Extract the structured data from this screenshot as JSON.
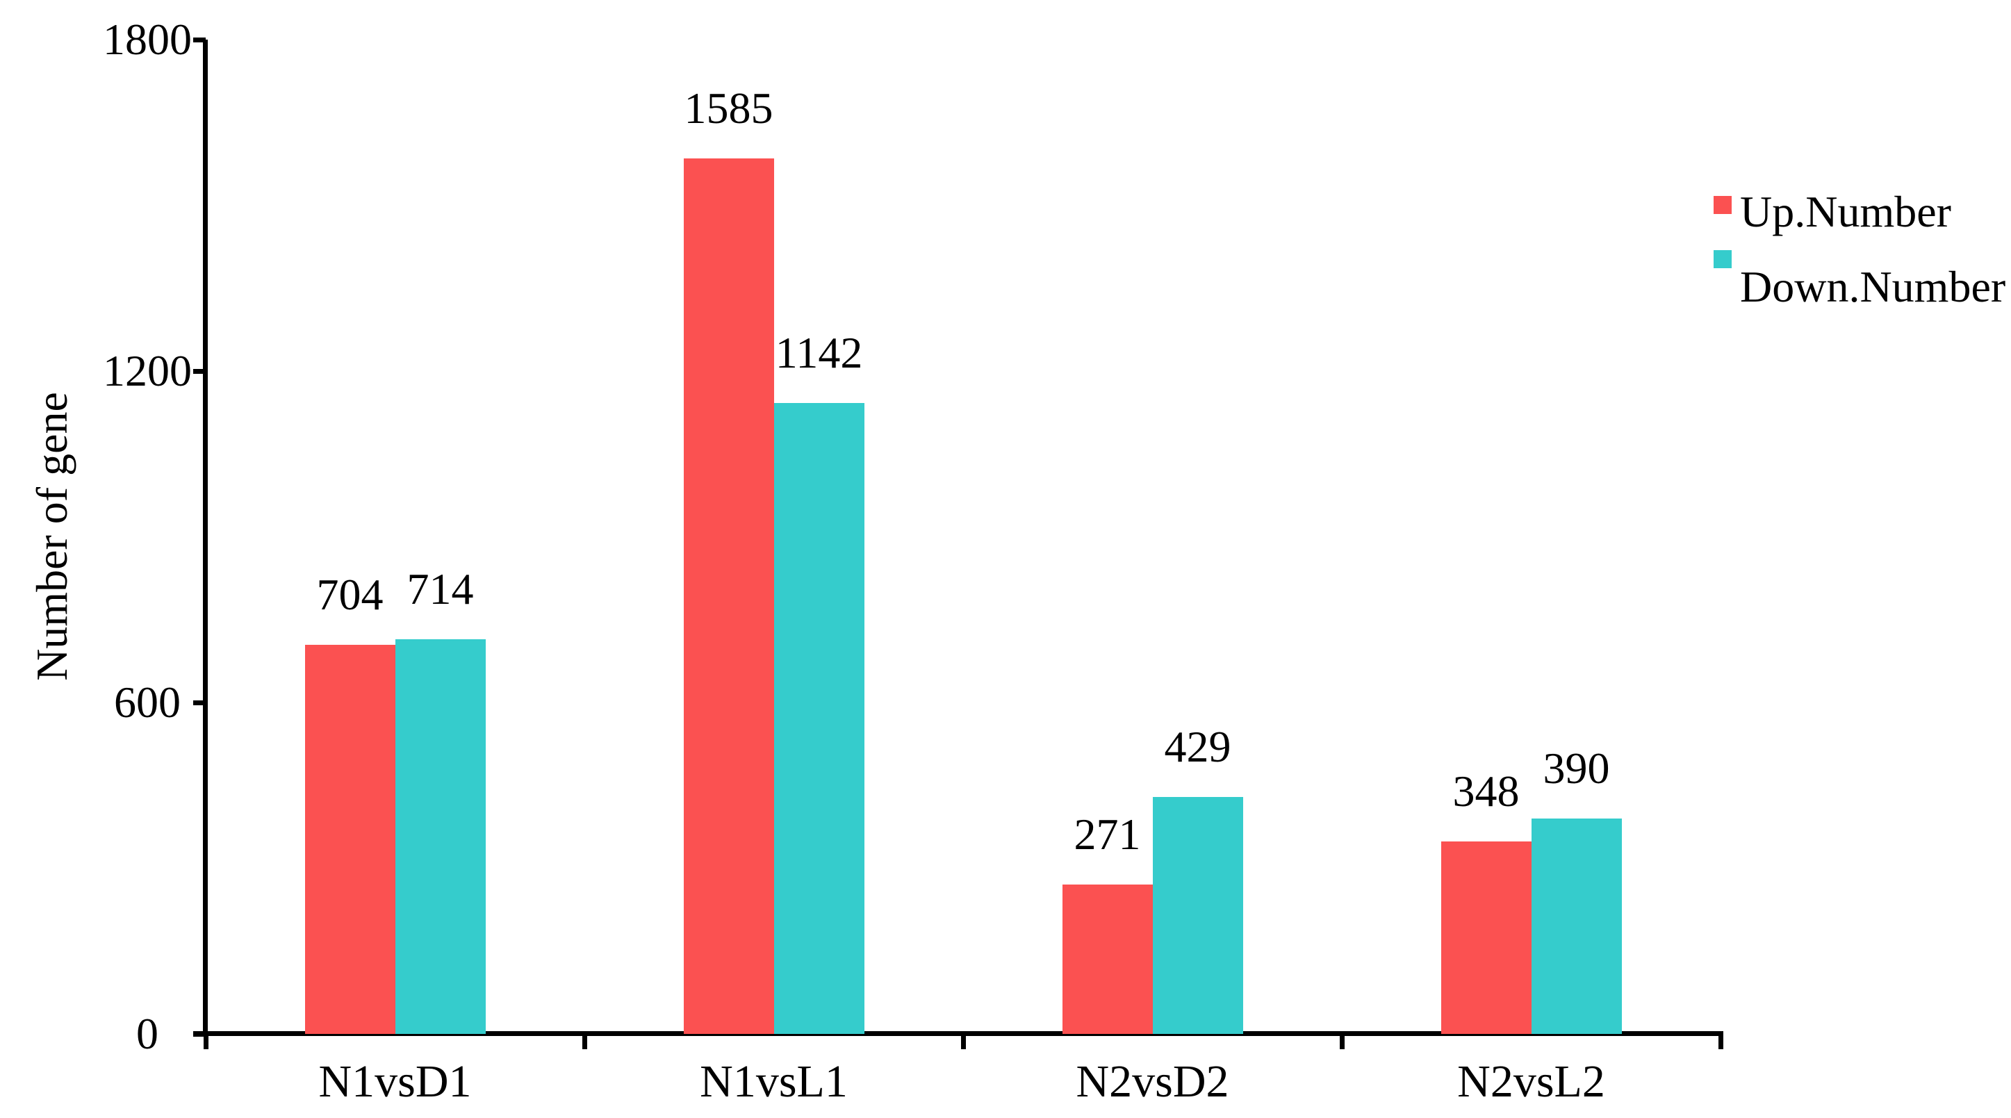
{
  "background": "#ffffff",
  "axis_color": "#000000",
  "chart_data": {
    "type": "bar",
    "title": "",
    "xlabel": "",
    "ylabel": "Number of gene",
    "categories": [
      "N1vsD1",
      "N1vsL1",
      "N2vsD2",
      "N2vsL2"
    ],
    "series": [
      {
        "name": "Up.Number",
        "color": "#FB5151",
        "values": [
          704,
          1585,
          271,
          348
        ]
      },
      {
        "name": "Down.Number",
        "color": "#35CCCC",
        "values": [
          714,
          1142,
          429,
          390
        ]
      }
    ],
    "ylim": [
      0,
      1800
    ],
    "yticks": [
      0,
      600,
      1200,
      1800
    ],
    "grid": false,
    "bar_value_labels": true,
    "legend_position": "top-right"
  }
}
